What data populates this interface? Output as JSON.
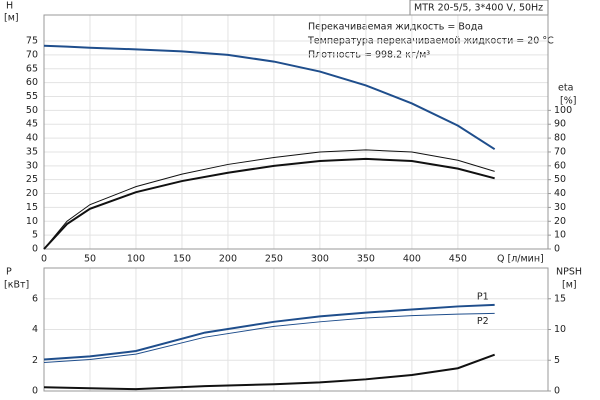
{
  "chart_data": [
    {
      "type": "line",
      "info_box": "MTR 20-5/5, 3*400 V, 50Hz",
      "annotations": [
        "Перекачиваемая жидкость = Вода",
        "Температура перекачиваемой жидкости = 20 °C",
        "Плотность = 998.2 кг/м³"
      ],
      "y_label": "H",
      "y_unit": "[м]",
      "y2_label": "eta",
      "y2_unit": "[%]",
      "x_label": "Q [л/мин]",
      "x": [
        0,
        25,
        50,
        100,
        150,
        200,
        250,
        300,
        350,
        400,
        450,
        490
      ],
      "xlim": [
        0,
        548
      ],
      "xticks": [
        0,
        50,
        100,
        150,
        200,
        250,
        300,
        350,
        400,
        450
      ],
      "ylim": [
        0,
        84.4
      ],
      "yticks": [
        0,
        5,
        10,
        15,
        20,
        25,
        30,
        35,
        40,
        45,
        50,
        55,
        60,
        65,
        70,
        75
      ],
      "y2lim": [
        0,
        168.8
      ],
      "y2ticks": [
        0,
        10,
        20,
        30,
        40,
        50,
        60,
        70,
        80,
        90,
        100
      ],
      "grid": true,
      "series": [
        {
          "color": "#1f4e8c",
          "values": [
            73.3,
            73,
            72.6,
            72,
            71.3,
            70,
            67.6,
            64,
            59,
            52.5,
            44.5,
            36
          ]
        },
        {
          "color": "#111111",
          "axis": "y2",
          "values": [
            0,
            20,
            32,
            45,
            54,
            61,
            66,
            70,
            71.5,
            70,
            64,
            56
          ]
        },
        {
          "color": "#111111",
          "axis": "y2",
          "values": [
            0,
            18,
            29,
            41,
            49,
            55,
            60,
            63.5,
            65,
            63.5,
            58,
            51
          ]
        }
      ]
    },
    {
      "type": "line",
      "y_label": "P",
      "y_unit": "[кВт]",
      "y2_label": "NPSH",
      "y2_unit": "[м]",
      "x": [
        0,
        50,
        100,
        175,
        250,
        300,
        350,
        400,
        450,
        490
      ],
      "xlim": [
        0,
        548
      ],
      "xticks": [
        0,
        50,
        100,
        150,
        200,
        250,
        300,
        350,
        400,
        450
      ],
      "ylim": [
        0,
        8
      ],
      "yticks": [
        0,
        2,
        4,
        6
      ],
      "y2lim": [
        0,
        20
      ],
      "y2ticks": [
        0,
        5,
        10,
        15
      ],
      "grid": true,
      "series": [
        {
          "name": "P1",
          "color": "#1f4e8c",
          "values": [
            2.05,
            2.25,
            2.6,
            3.8,
            4.5,
            4.85,
            5.1,
            5.3,
            5.5,
            5.6
          ]
        },
        {
          "name": "P2",
          "color": "#1f4e8c",
          "values": [
            1.85,
            2.05,
            2.4,
            3.5,
            4.2,
            4.5,
            4.75,
            4.9,
            5.0,
            5.05
          ]
        },
        {
          "color": "#111111",
          "axis": "y2",
          "values": [
            0.6,
            0.45,
            0.3,
            0.8,
            1.1,
            1.4,
            1.9,
            2.6,
            3.7,
            5.9
          ]
        }
      ]
    }
  ]
}
